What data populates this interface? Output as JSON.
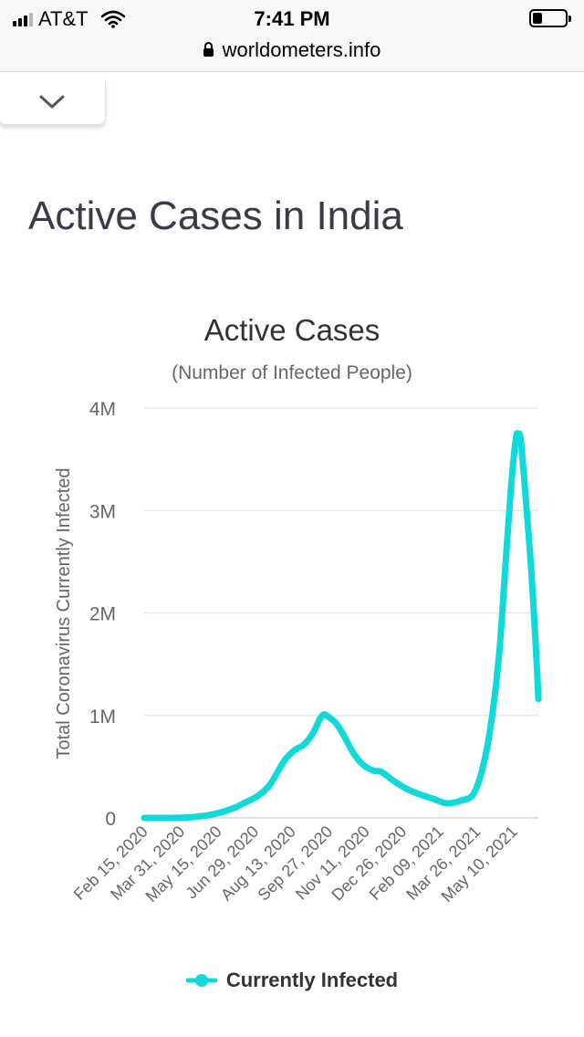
{
  "status_bar": {
    "carrier": "AT&T",
    "time": "7:41 PM",
    "url": "worldometers.info"
  },
  "page": {
    "title": "Active Cases in India"
  },
  "chart_data": {
    "type": "line",
    "title": "Active Cases",
    "subtitle": "(Number of Infected People)",
    "xlabel": "",
    "ylabel": "Total Coronavirus Currently Infected",
    "ylim": [
      0,
      4000000
    ],
    "yticks": [
      0,
      1000000,
      2000000,
      3000000,
      4000000
    ],
    "ytick_labels": [
      "0",
      "1M",
      "2M",
      "3M",
      "4M"
    ],
    "xtick_labels": [
      "Feb 15, 2020",
      "Mar 31, 2020",
      "May 15, 2020",
      "Jun 29, 2020",
      "Aug 13, 2020",
      "Sep 27, 2020",
      "Nov 11, 2020",
      "Dec 26, 2020",
      "Feb 09, 2021",
      "Mar 26, 2021",
      "May 10, 2021"
    ],
    "x_start": "2020-02-15",
    "x_end": "2021-06-01",
    "grid": true,
    "legend_position": "bottom",
    "color": "#10d9d9",
    "series": [
      {
        "name": "Currently Infected",
        "points": [
          [
            "2020-02-15",
            3
          ],
          [
            "2020-03-15",
            100
          ],
          [
            "2020-04-01",
            2000
          ],
          [
            "2020-04-15",
            10000
          ],
          [
            "2020-05-01",
            25000
          ],
          [
            "2020-05-15",
            50000
          ],
          [
            "2020-06-01",
            95000
          ],
          [
            "2020-06-15",
            150000
          ],
          [
            "2020-07-01",
            220000
          ],
          [
            "2020-07-15",
            330000
          ],
          [
            "2020-08-01",
            560000
          ],
          [
            "2020-08-13",
            660000
          ],
          [
            "2020-08-25",
            720000
          ],
          [
            "2020-09-05",
            840000
          ],
          [
            "2020-09-12",
            960000
          ],
          [
            "2020-09-17",
            1010000
          ],
          [
            "2020-09-22",
            990000
          ],
          [
            "2020-10-01",
            930000
          ],
          [
            "2020-10-10",
            820000
          ],
          [
            "2020-10-22",
            640000
          ],
          [
            "2020-11-03",
            520000
          ],
          [
            "2020-11-16",
            460000
          ],
          [
            "2020-11-25",
            450000
          ],
          [
            "2020-12-10",
            360000
          ],
          [
            "2020-12-26",
            280000
          ],
          [
            "2021-01-10",
            230000
          ],
          [
            "2021-01-25",
            190000
          ],
          [
            "2021-02-09",
            145000
          ],
          [
            "2021-02-20",
            150000
          ],
          [
            "2021-03-01",
            170000
          ],
          [
            "2021-03-15",
            230000
          ],
          [
            "2021-03-26",
            480000
          ],
          [
            "2021-04-05",
            900000
          ],
          [
            "2021-04-15",
            1600000
          ],
          [
            "2021-04-22",
            2400000
          ],
          [
            "2021-04-29",
            3200000
          ],
          [
            "2021-05-05",
            3700000
          ],
          [
            "2021-05-08",
            3740000
          ],
          [
            "2021-05-11",
            3680000
          ],
          [
            "2021-05-17",
            3100000
          ],
          [
            "2021-05-24",
            2350000
          ],
          [
            "2021-05-30",
            1500000
          ],
          [
            "2021-06-01",
            1160000
          ]
        ]
      }
    ]
  }
}
